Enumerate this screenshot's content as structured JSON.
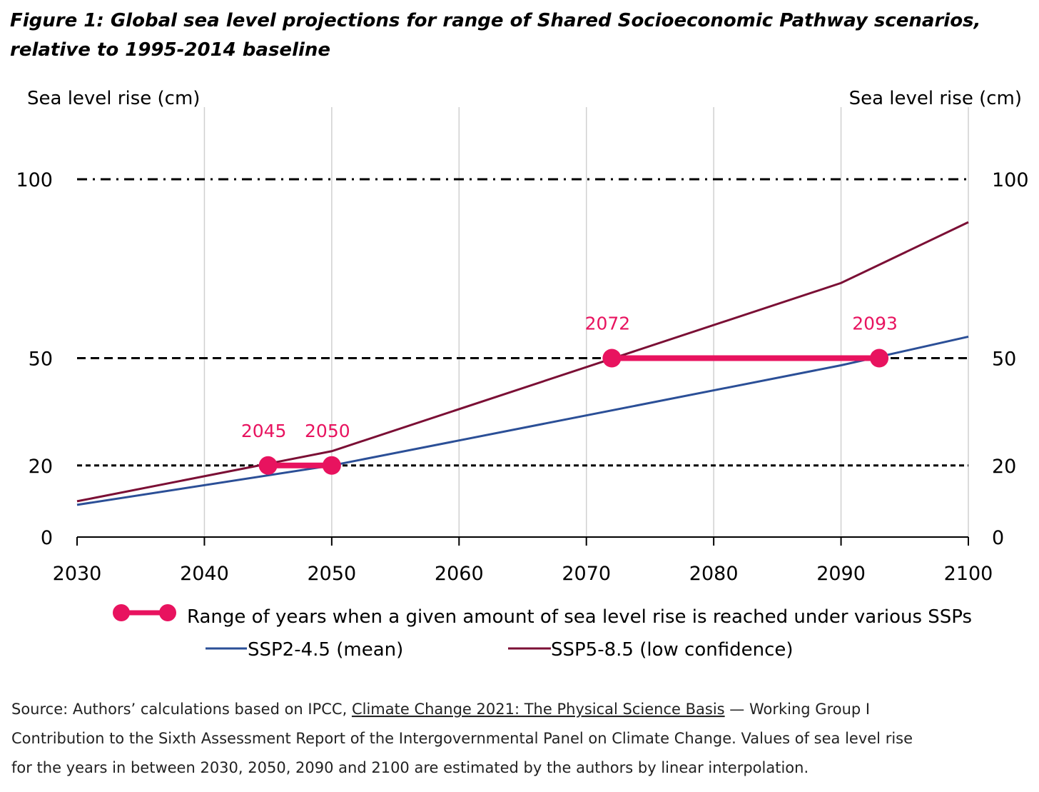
{
  "title_line1": "Figure 1: Global sea level projections for range of Shared Socioeconomic Pathway scenarios,",
  "title_line2": "relative to 1995-2014 baseline",
  "chart_data": {
    "type": "line",
    "title": "Global sea level projections for range of Shared Socioeconomic Pathway scenarios, relative to 1995-2014 baseline",
    "ylabel_left": "Sea level rise (cm)",
    "ylabel_right": "Sea level rise (cm)",
    "xlim": [
      2030,
      2100
    ],
    "ylim": [
      0,
      100
    ],
    "x_ticks": [
      "2030",
      "2040",
      "2050",
      "2060",
      "2070",
      "2080",
      "2090",
      "2100"
    ],
    "y_ticks": [
      "0",
      "20",
      "50",
      "100"
    ],
    "threshold_lines": [
      {
        "value": 100,
        "style": "dash-dot"
      },
      {
        "value": 50,
        "style": "dashed"
      },
      {
        "value": 20,
        "style": "dotted"
      }
    ],
    "series": [
      {
        "name": "SSP2-4.5 (mean)",
        "color": "#2b4f97",
        "x": [
          2030,
          2050,
          2090,
          2100
        ],
        "y": [
          9,
          20,
          48,
          56
        ]
      },
      {
        "name": "SSP5-8.5 (low confidence)",
        "color": "#7b0f35",
        "x": [
          2030,
          2050,
          2090,
          2100
        ],
        "y": [
          10,
          24,
          71,
          88
        ]
      }
    ],
    "ranges": [
      {
        "level": 20,
        "from": 2045,
        "to": 2050,
        "from_label": "2045",
        "to_label": "2050"
      },
      {
        "level": 50,
        "from": 2072,
        "to": 2093,
        "from_label": "2072",
        "to_label": "2093"
      }
    ],
    "range_color": "#e8135f",
    "legend": {
      "range": "Range of years when a given amount of sea level rise is reached under various SSPs",
      "ssp245": "SSP2-4.5 (mean)",
      "ssp585": "SSP5-8.5 (low confidence)",
      "placement": "bottom"
    }
  },
  "source": {
    "line1_pre": "Source: Authors’ calculations based on IPCC, ",
    "line1_link": "Climate Change 2021: The Physical Science Basis",
    "line1_post": " — Working Group I",
    "line2": "Contribution to the Sixth Assessment Report of the Intergovernmental Panel on Climate Change. Values of sea level rise",
    "line3": "for the years in between 2030, 2050, 2090 and 2100 are estimated by the authors by linear interpolation."
  }
}
